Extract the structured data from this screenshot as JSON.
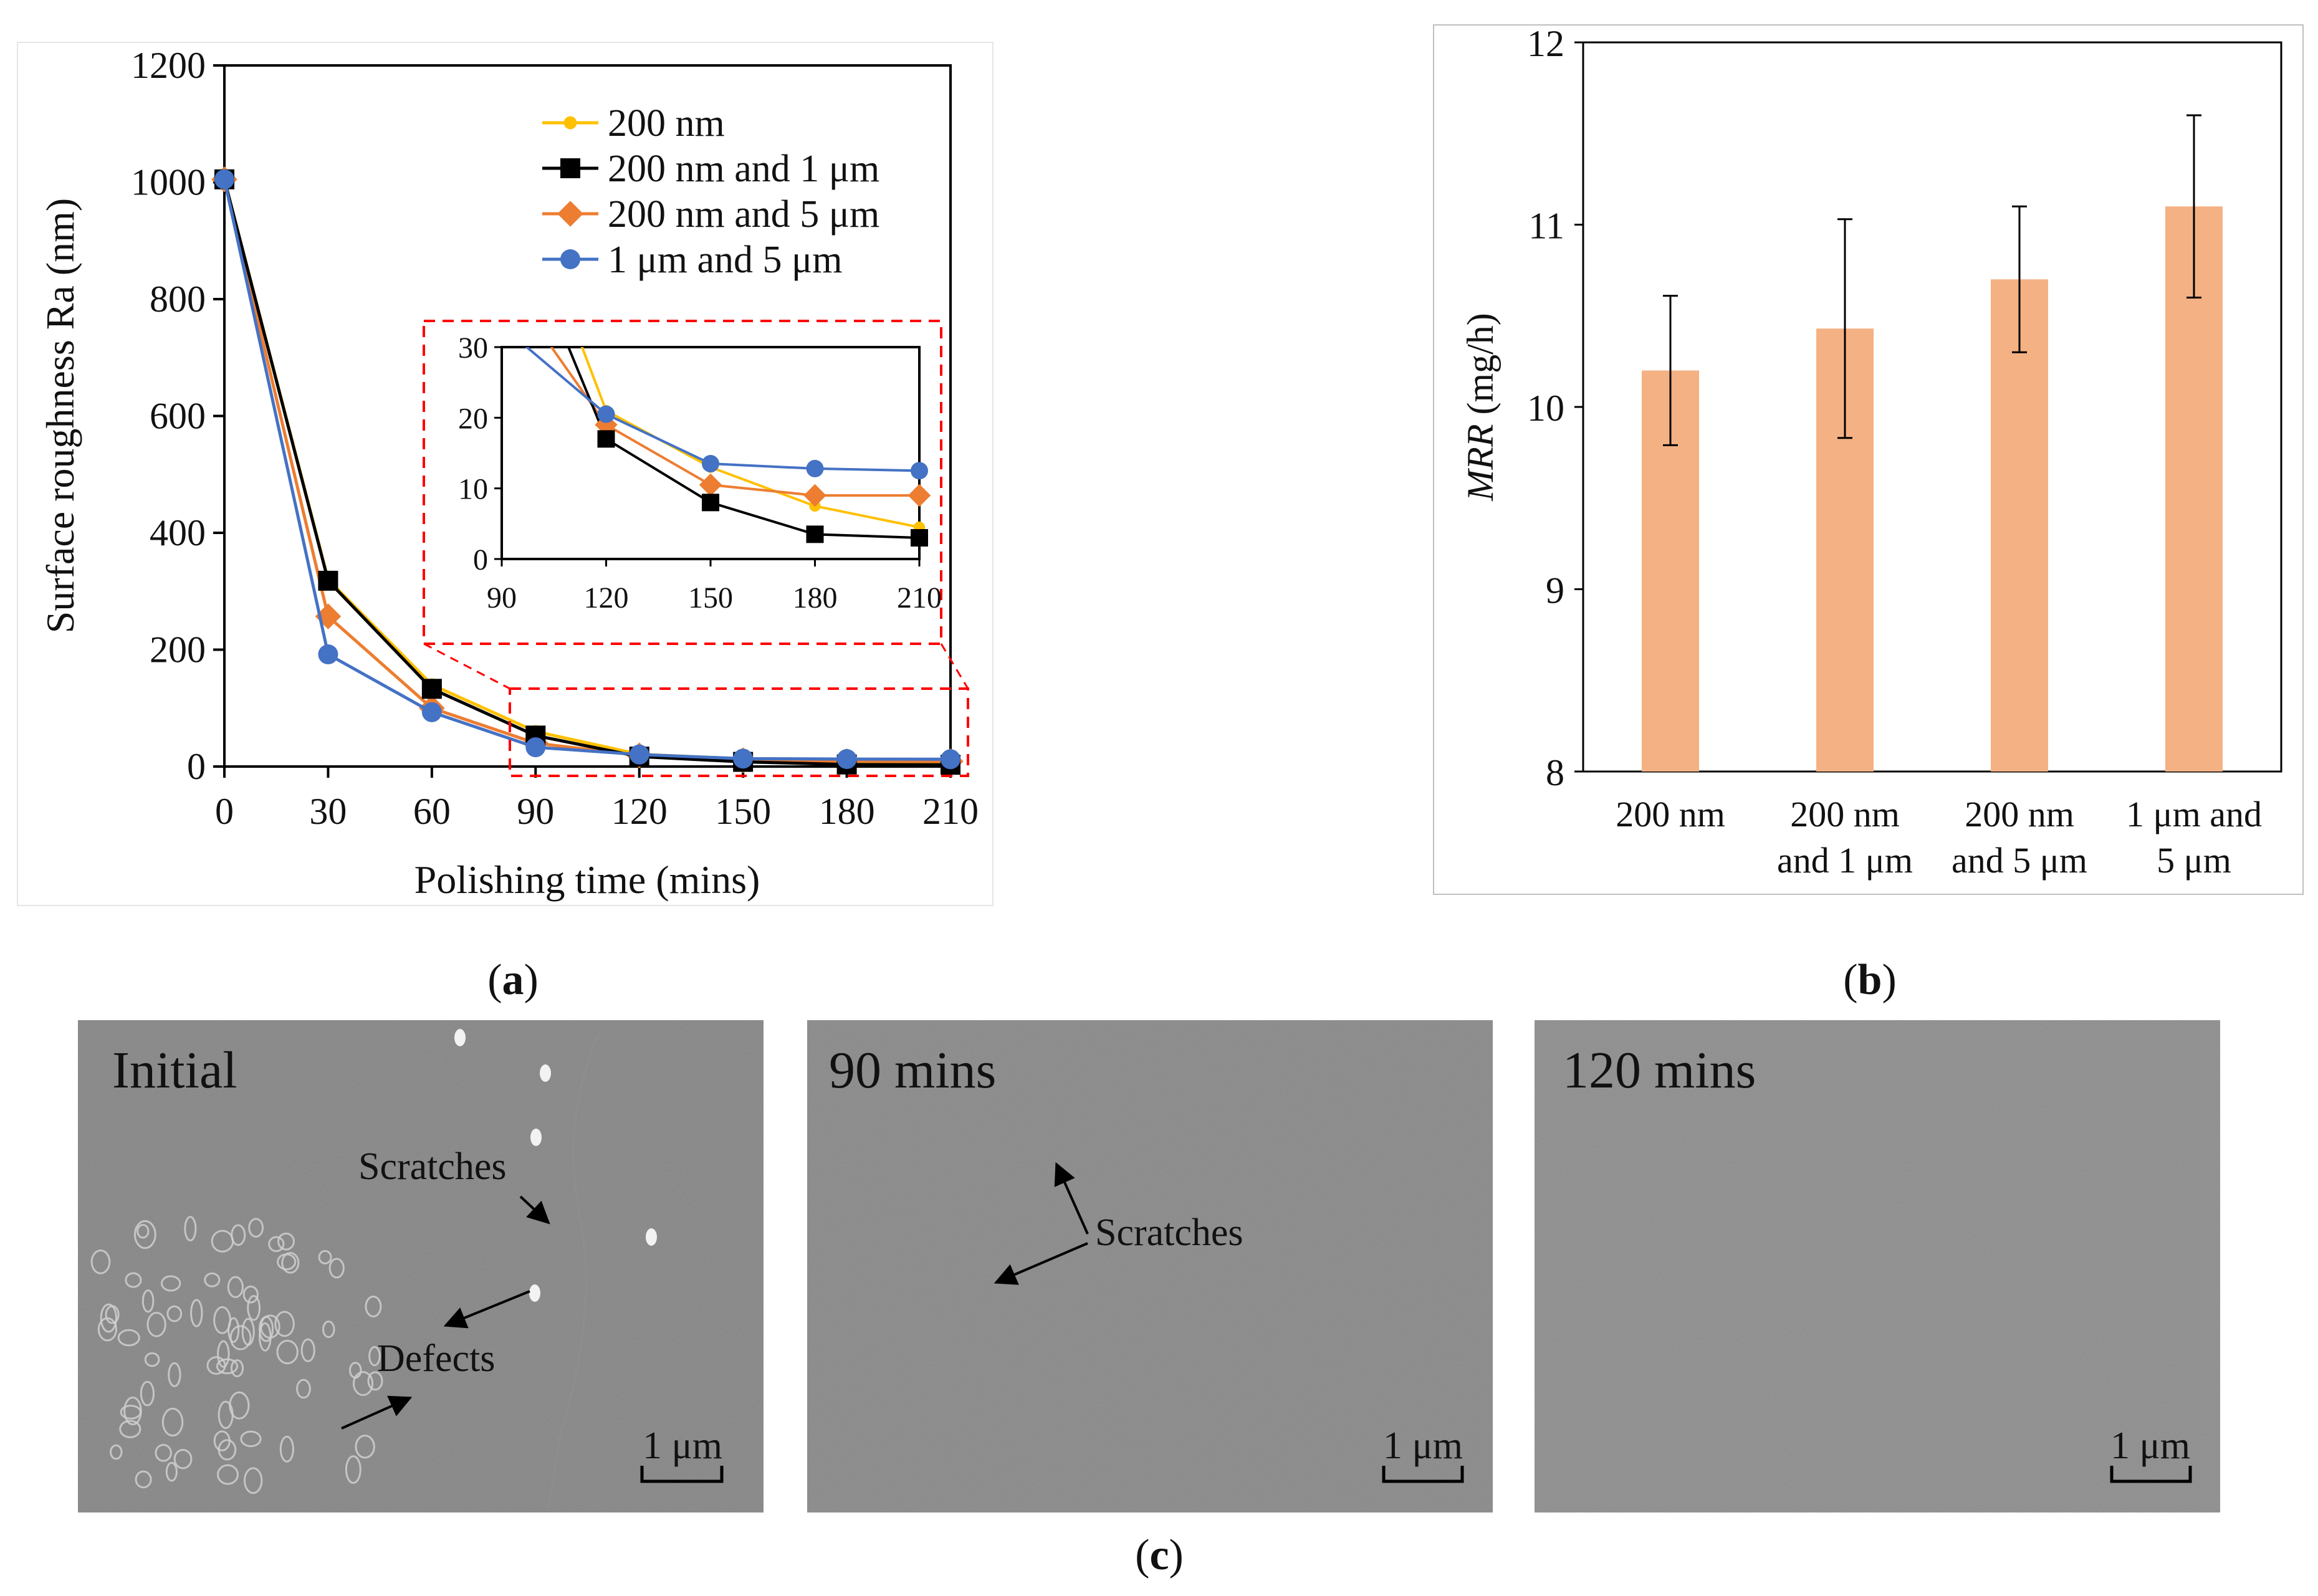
{
  "panel_labels": {
    "a": "a",
    "b": "b",
    "c": "c"
  },
  "chart_data": [
    {
      "type": "line",
      "panel": "a",
      "xlabel": "Polishing time (mins)",
      "ylabel": "Surface roughness Ra (nm)",
      "x": [
        0,
        30,
        60,
        90,
        120,
        150,
        180,
        210
      ],
      "xticks": [
        "0",
        "30",
        "60",
        "90",
        "120",
        "150",
        "180",
        "210"
      ],
      "yticks": [
        "0",
        "200",
        "400",
        "600",
        "800",
        "1000",
        "1200"
      ],
      "xlim": [
        0,
        210
      ],
      "ylim": [
        0,
        1200
      ],
      "grid": false,
      "legend_position": "top-right",
      "series": [
        {
          "name": "200 nm",
          "color": "#ffc000",
          "marker": "small-circle",
          "values": [
            1005,
            320,
            140,
            60,
            21,
            13,
            7.5,
            4.5
          ]
        },
        {
          "name": "200 nm and 1 μm",
          "color": "#000000",
          "marker": "square",
          "values": [
            1005,
            318,
            133,
            53,
            17,
            8,
            3.5,
            3
          ]
        },
        {
          "name": "200 nm and 5 μm",
          "color": "#ed7d31",
          "marker": "diamond",
          "values": [
            1005,
            257,
            100,
            40,
            19,
            10.5,
            9,
            9
          ]
        },
        {
          "name": "1 μm and 5 μm",
          "color": "#4472c4",
          "marker": "circle",
          "values": [
            1005,
            192,
            93,
            33,
            20.5,
            13.5,
            12.8,
            12.5
          ]
        }
      ],
      "inset": {
        "xlim": [
          90,
          210
        ],
        "ylim": [
          0,
          30
        ],
        "xticks": [
          "90",
          "120",
          "150",
          "180",
          "210"
        ],
        "yticks": [
          "0",
          "10",
          "20",
          "30"
        ],
        "highlight_color": "#ff0000"
      }
    },
    {
      "type": "bar",
      "panel": "b",
      "ylabel": "MRR",
      "ylabel_unit": " (mg/h)",
      "categories": [
        [
          "200 nm"
        ],
        [
          "200 nm",
          "and 1 μm"
        ],
        [
          "200 nm",
          "and 5 μm"
        ],
        [
          "1 μm and",
          "5 μm"
        ]
      ],
      "values": [
        10.2,
        10.43,
        10.7,
        11.1
      ],
      "error": [
        0.41,
        0.6,
        0.4,
        0.5
      ],
      "ylim": [
        8,
        12
      ],
      "yticks": [
        "8",
        "9",
        "10",
        "11",
        "12"
      ],
      "bar_color": "#f4b183",
      "grid": false
    }
  ],
  "sem_images": [
    {
      "label": "Initial",
      "scale_bar": "1 μm",
      "annotations": [
        "Scratches",
        "Defects"
      ]
    },
    {
      "label": "90 mins",
      "scale_bar": "1 μm",
      "annotations": [
        "Scratches"
      ]
    },
    {
      "label": "120 mins",
      "scale_bar": "1 μm",
      "annotations": []
    }
  ]
}
